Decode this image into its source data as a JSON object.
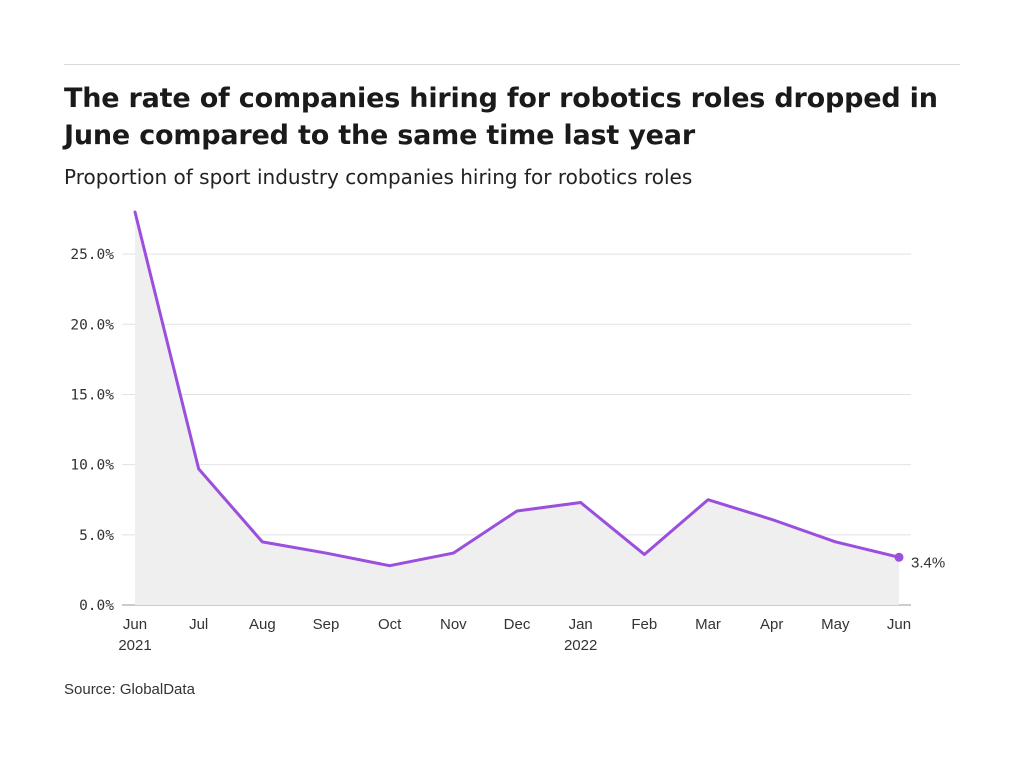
{
  "header": {
    "title": "The rate of companies hiring for robotics roles dropped in June compared to the same time last year",
    "subtitle": "Proportion of sport industry companies hiring for robotics roles"
  },
  "source": "Source: GlobalData",
  "colors": {
    "line": "#9b4fdd",
    "area": "#efefef",
    "grid": "#e2e2e2",
    "axis": "#999999"
  },
  "chart_data": {
    "type": "line",
    "title": "The rate of companies hiring for robotics roles dropped in June compared to the same time last year",
    "subtitle": "Proportion of sport industry companies hiring for robotics roles",
    "xlabel": "",
    "ylabel": "",
    "categories": [
      "Jun\n2021",
      "Jul",
      "Aug",
      "Sep",
      "Oct",
      "Nov",
      "Dec",
      "Jan\n2022",
      "Feb",
      "Mar",
      "Apr",
      "May",
      "Jun"
    ],
    "series": [
      {
        "values": [
          28.0,
          9.7,
          4.5,
          3.7,
          2.8,
          3.7,
          6.7,
          7.3,
          3.6,
          7.5,
          6.1,
          4.5,
          3.4
        ]
      }
    ],
    "yticks": [
      "0.0%",
      "5.0%",
      "10.0%",
      "15.0%",
      "20.0%",
      "25.0%"
    ],
    "ylim": [
      0,
      28
    ],
    "end_label": "3.4%",
    "grid": true,
    "area_fill": true,
    "legend": "none"
  }
}
